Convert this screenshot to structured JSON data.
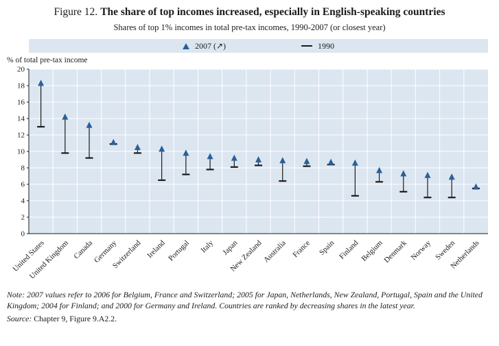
{
  "header": {
    "figure_label": "Figure 12.",
    "title": "The share of top incomes increased, especially in English-speaking countries",
    "subtitle": "Shares of top 1% incomes in total pre-tax incomes, 1990-2007 (or closest year)"
  },
  "legend": {
    "item2007": "2007 (↗)",
    "item1990": "1990"
  },
  "note": {
    "label": "Note:",
    "text": "2007 values refer to 2006 for Belgium, France and Switzerland; 2005 for Japan, Netherlands, New Zealand, Portugal, Spain and the United Kingdom; 2004 for Finland; and 2000 for Germany and Ireland. Countries are ranked by decreasing shares in the latest year."
  },
  "source": {
    "label": "Source:",
    "text": "Chapter 9, Figure 9.A2.2."
  },
  "chart_data": {
    "type": "scatter",
    "subtype": "range-markers",
    "title": "The share of top incomes increased, especially in English-speaking countries",
    "subtitle": "Shares of top 1% incomes in total pre-tax incomes, 1990-2007 (or closest year)",
    "ylabel": "% of total pre-tax income",
    "xlabel": "",
    "ylim": [
      0,
      20
    ],
    "ytick_step": 2,
    "grid": true,
    "legend_position": "top",
    "categories": [
      "United States",
      "United Kingdom",
      "Canada",
      "Germany",
      "Switzerland",
      "Ireland",
      "Portugal",
      "Italy",
      "Japan",
      "New Zealand",
      "Australia",
      "France",
      "Spain",
      "Finland",
      "Belgium",
      "Denmark",
      "Norway",
      "Sweden",
      "Netherlands"
    ],
    "series": [
      {
        "name": "2007",
        "marker": "triangle",
        "values": [
          18.3,
          14.2,
          13.2,
          11.1,
          10.5,
          10.3,
          9.8,
          9.4,
          9.2,
          9.0,
          8.9,
          8.8,
          8.7,
          8.6,
          7.7,
          7.3,
          7.1,
          6.9,
          5.7
        ]
      },
      {
        "name": "1990",
        "marker": "dash",
        "values": [
          13.0,
          9.8,
          9.2,
          10.9,
          9.8,
          6.5,
          7.2,
          7.8,
          8.1,
          8.3,
          6.4,
          8.2,
          8.4,
          4.6,
          6.3,
          5.1,
          4.4,
          4.4,
          5.5
        ]
      }
    ],
    "colors": {
      "marker_2007": "#2a6099",
      "marker_1990": "#1a1a1a",
      "plot_bg": "#dce6f1",
      "grid": "#ffffff",
      "axis": "#1a1a1a"
    }
  }
}
